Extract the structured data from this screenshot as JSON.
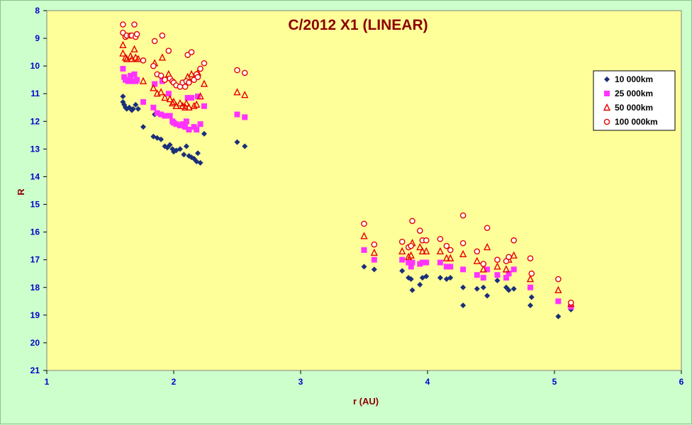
{
  "chart_data": {
    "type": "scatter",
    "title": "C/2012 X1 (LINEAR)",
    "xlabel": "r (AU)",
    "ylabel": "R",
    "xlim": [
      1,
      6
    ],
    "ylim": [
      8,
      21
    ],
    "y_inverted": true,
    "x_ticks": [
      "1",
      "2",
      "3",
      "4",
      "5",
      "6"
    ],
    "y_ticks": [
      "8",
      "9",
      "10",
      "11",
      "12",
      "13",
      "14",
      "15",
      "16",
      "17",
      "18",
      "19",
      "20",
      "21"
    ],
    "grid": false,
    "legend_position": "right",
    "plot_background": "#ffff99",
    "series": [
      {
        "name": "10 000km",
        "marker": "diamond",
        "color": "#1a2f7a",
        "points": [
          [
            1.6,
            11.1
          ],
          [
            1.6,
            11.3
          ],
          [
            1.61,
            11.4
          ],
          [
            1.62,
            11.5
          ],
          [
            1.63,
            11.55
          ],
          [
            1.65,
            11.5
          ],
          [
            1.67,
            11.6
          ],
          [
            1.68,
            11.55
          ],
          [
            1.7,
            11.4
          ],
          [
            1.72,
            11.55
          ],
          [
            1.76,
            12.2
          ],
          [
            1.84,
            12.55
          ],
          [
            1.85,
            11.75
          ],
          [
            1.87,
            12.6
          ],
          [
            1.9,
            12.65
          ],
          [
            1.93,
            12.9
          ],
          [
            1.95,
            12.95
          ],
          [
            1.97,
            12.85
          ],
          [
            1.99,
            13.0
          ],
          [
            2.0,
            13.1
          ],
          [
            2.02,
            13.05
          ],
          [
            2.05,
            13.0
          ],
          [
            2.08,
            13.2
          ],
          [
            2.1,
            12.9
          ],
          [
            2.12,
            13.25
          ],
          [
            2.14,
            13.3
          ],
          [
            2.16,
            13.35
          ],
          [
            2.18,
            13.45
          ],
          [
            2.19,
            13.15
          ],
          [
            2.21,
            13.5
          ],
          [
            2.24,
            12.45
          ],
          [
            2.5,
            12.75
          ],
          [
            2.56,
            12.9
          ],
          [
            3.5,
            17.25
          ],
          [
            3.58,
            17.35
          ],
          [
            3.8,
            17.4
          ],
          [
            3.85,
            17.65
          ],
          [
            3.87,
            17.7
          ],
          [
            3.88,
            18.1
          ],
          [
            3.94,
            17.9
          ],
          [
            3.96,
            17.65
          ],
          [
            3.99,
            17.6
          ],
          [
            4.1,
            17.65
          ],
          [
            4.15,
            17.7
          ],
          [
            4.18,
            17.65
          ],
          [
            4.28,
            18.0
          ],
          [
            4.28,
            18.65
          ],
          [
            4.39,
            18.05
          ],
          [
            4.44,
            18.0
          ],
          [
            4.47,
            18.3
          ],
          [
            4.55,
            17.75
          ],
          [
            4.62,
            18.0
          ],
          [
            4.64,
            18.1
          ],
          [
            4.68,
            18.05
          ],
          [
            4.81,
            18.65
          ],
          [
            4.82,
            18.35
          ],
          [
            5.03,
            19.05
          ],
          [
            5.13,
            18.8
          ]
        ]
      },
      {
        "name": "25 000km",
        "marker": "square",
        "color": "#ff33ff",
        "points": [
          [
            1.6,
            10.1
          ],
          [
            1.61,
            10.4
          ],
          [
            1.62,
            10.5
          ],
          [
            1.64,
            10.55
          ],
          [
            1.66,
            10.35
          ],
          [
            1.68,
            10.55
          ],
          [
            1.69,
            10.3
          ],
          [
            1.7,
            10.55
          ],
          [
            1.71,
            10.5
          ],
          [
            1.76,
            11.3
          ],
          [
            1.84,
            11.5
          ],
          [
            1.85,
            10.65
          ],
          [
            1.87,
            11.7
          ],
          [
            1.9,
            11.75
          ],
          [
            1.91,
            10.55
          ],
          [
            1.93,
            11.8
          ],
          [
            1.96,
            11.0
          ],
          [
            1.97,
            11.8
          ],
          [
            1.99,
            12.0
          ],
          [
            2.0,
            12.05
          ],
          [
            2.02,
            12.1
          ],
          [
            2.05,
            12.15
          ],
          [
            2.07,
            12.1
          ],
          [
            2.09,
            12.2
          ],
          [
            2.1,
            12.0
          ],
          [
            2.11,
            11.15
          ],
          [
            2.12,
            12.3
          ],
          [
            2.14,
            11.15
          ],
          [
            2.16,
            12.2
          ],
          [
            2.18,
            12.3
          ],
          [
            2.19,
            11.1
          ],
          [
            2.21,
            12.1
          ],
          [
            2.24,
            11.45
          ],
          [
            2.5,
            11.75
          ],
          [
            2.56,
            11.85
          ],
          [
            3.5,
            16.65
          ],
          [
            3.58,
            17.0
          ],
          [
            3.8,
            17.0
          ],
          [
            3.85,
            17.1
          ],
          [
            3.87,
            17.25
          ],
          [
            3.88,
            17.1
          ],
          [
            3.94,
            17.15
          ],
          [
            3.96,
            17.1
          ],
          [
            3.99,
            17.1
          ],
          [
            4.1,
            17.1
          ],
          [
            4.15,
            17.25
          ],
          [
            4.18,
            17.25
          ],
          [
            4.28,
            17.35
          ],
          [
            4.39,
            17.55
          ],
          [
            4.44,
            17.65
          ],
          [
            4.47,
            17.35
          ],
          [
            4.55,
            17.55
          ],
          [
            4.62,
            17.65
          ],
          [
            4.64,
            17.5
          ],
          [
            4.68,
            17.35
          ],
          [
            4.81,
            18.0
          ],
          [
            5.03,
            18.5
          ],
          [
            5.13,
            18.7
          ]
        ]
      },
      {
        "name": "50 000km",
        "marker": "triangle",
        "color": "#e60000",
        "points": [
          [
            1.6,
            9.25
          ],
          [
            1.6,
            9.55
          ],
          [
            1.62,
            9.7
          ],
          [
            1.63,
            9.75
          ],
          [
            1.66,
            9.65
          ],
          [
            1.67,
            9.75
          ],
          [
            1.69,
            9.4
          ],
          [
            1.7,
            9.7
          ],
          [
            1.72,
            9.75
          ],
          [
            1.76,
            10.55
          ],
          [
            1.84,
            10.8
          ],
          [
            1.85,
            9.9
          ],
          [
            1.87,
            11.0
          ],
          [
            1.9,
            10.95
          ],
          [
            1.91,
            9.7
          ],
          [
            1.93,
            11.15
          ],
          [
            1.96,
            10.3
          ],
          [
            1.97,
            11.2
          ],
          [
            1.99,
            11.35
          ],
          [
            2.0,
            11.3
          ],
          [
            2.02,
            11.45
          ],
          [
            2.05,
            11.35
          ],
          [
            2.07,
            11.45
          ],
          [
            2.09,
            11.5
          ],
          [
            2.1,
            11.35
          ],
          [
            2.11,
            10.4
          ],
          [
            2.12,
            11.5
          ],
          [
            2.14,
            10.3
          ],
          [
            2.16,
            11.45
          ],
          [
            2.18,
            11.4
          ],
          [
            2.19,
            10.25
          ],
          [
            2.21,
            11.1
          ],
          [
            2.24,
            10.65
          ],
          [
            2.5,
            10.95
          ],
          [
            2.56,
            11.05
          ],
          [
            3.5,
            16.15
          ],
          [
            3.58,
            16.75
          ],
          [
            3.8,
            16.7
          ],
          [
            3.85,
            16.9
          ],
          [
            3.87,
            16.85
          ],
          [
            3.88,
            16.4
          ],
          [
            3.94,
            16.55
          ],
          [
            3.96,
            16.7
          ],
          [
            3.99,
            16.7
          ],
          [
            4.1,
            16.7
          ],
          [
            4.15,
            16.95
          ],
          [
            4.18,
            16.95
          ],
          [
            4.28,
            16.8
          ],
          [
            4.39,
            17.05
          ],
          [
            4.44,
            17.35
          ],
          [
            4.47,
            16.55
          ],
          [
            4.55,
            17.25
          ],
          [
            4.62,
            17.35
          ],
          [
            4.64,
            17.0
          ],
          [
            4.68,
            16.85
          ],
          [
            4.81,
            17.7
          ],
          [
            5.03,
            18.1
          ],
          [
            5.13,
            18.6
          ]
        ]
      },
      {
        "name": "100 000km",
        "marker": "circle",
        "color": "#e60000",
        "points": [
          [
            1.6,
            8.5
          ],
          [
            1.6,
            8.8
          ],
          [
            1.62,
            8.95
          ],
          [
            1.63,
            8.9
          ],
          [
            1.66,
            8.9
          ],
          [
            1.67,
            8.9
          ],
          [
            1.69,
            8.5
          ],
          [
            1.7,
            8.95
          ],
          [
            1.71,
            8.85
          ],
          [
            1.76,
            9.8
          ],
          [
            1.84,
            10.0
          ],
          [
            1.85,
            9.1
          ],
          [
            1.87,
            10.3
          ],
          [
            1.9,
            10.35
          ],
          [
            1.91,
            8.9
          ],
          [
            1.93,
            10.5
          ],
          [
            1.96,
            9.45
          ],
          [
            1.97,
            10.45
          ],
          [
            1.99,
            10.55
          ],
          [
            2.0,
            10.6
          ],
          [
            2.02,
            10.7
          ],
          [
            2.05,
            10.75
          ],
          [
            2.07,
            10.6
          ],
          [
            2.09,
            10.75
          ],
          [
            2.1,
            10.55
          ],
          [
            2.11,
            9.6
          ],
          [
            2.12,
            10.6
          ],
          [
            2.14,
            9.5
          ],
          [
            2.16,
            10.5
          ],
          [
            2.18,
            10.3
          ],
          [
            2.19,
            10.4
          ],
          [
            2.21,
            10.1
          ],
          [
            2.24,
            9.9
          ],
          [
            2.5,
            10.15
          ],
          [
            2.56,
            10.25
          ],
          [
            3.5,
            15.7
          ],
          [
            3.58,
            16.45
          ],
          [
            3.8,
            16.35
          ],
          [
            3.85,
            16.55
          ],
          [
            3.87,
            16.5
          ],
          [
            3.88,
            15.6
          ],
          [
            3.94,
            15.95
          ],
          [
            3.96,
            16.3
          ],
          [
            3.99,
            16.3
          ],
          [
            4.1,
            16.25
          ],
          [
            4.15,
            16.5
          ],
          [
            4.18,
            16.65
          ],
          [
            4.28,
            15.4
          ],
          [
            4.28,
            16.4
          ],
          [
            4.39,
            16.7
          ],
          [
            4.44,
            17.15
          ],
          [
            4.47,
            15.85
          ],
          [
            4.55,
            17.0
          ],
          [
            4.62,
            17.05
          ],
          [
            4.64,
            16.9
          ],
          [
            4.68,
            16.3
          ],
          [
            4.81,
            16.95
          ],
          [
            4.82,
            17.5
          ],
          [
            5.03,
            17.7
          ],
          [
            5.13,
            18.55
          ]
        ]
      }
    ]
  }
}
